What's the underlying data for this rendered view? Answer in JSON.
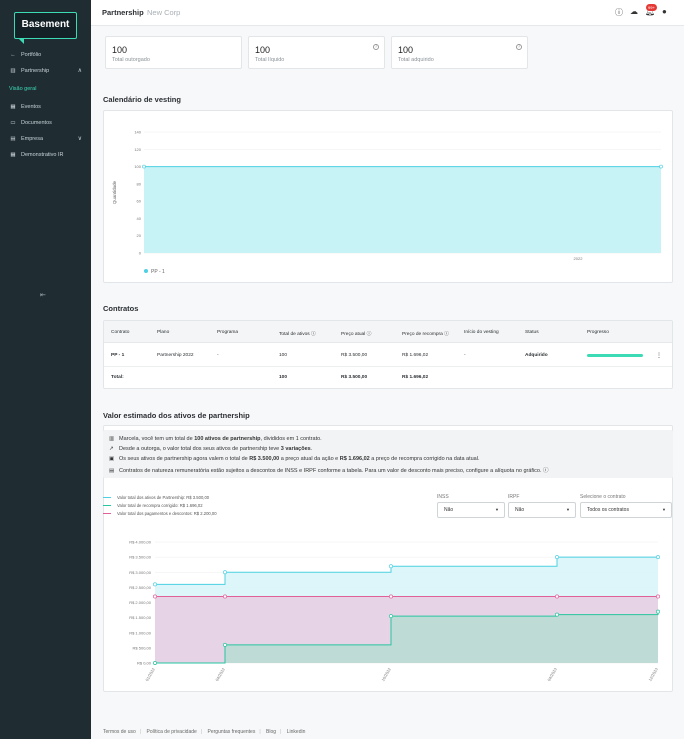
{
  "sidebar": {
    "logo": "Basement",
    "items": [
      {
        "label": "Portfólio",
        "icon": "arrow-left-icon"
      },
      {
        "label": "Partnership",
        "icon": "bar-chart-icon"
      },
      {
        "label": "Visão geral"
      },
      {
        "label": "Eventos",
        "icon": "calendar-icon"
      },
      {
        "label": "Documentos",
        "icon": "folder-icon"
      },
      {
        "label": "Empresa",
        "icon": "building-icon"
      },
      {
        "label": "Demonstrativo IR",
        "icon": "table-icon"
      }
    ],
    "collapse_icon": "collapse-left-icon"
  },
  "header": {
    "title": "Partnership",
    "company": "New Corp",
    "badge": "99+"
  },
  "summary": [
    {
      "value": "100",
      "label": "Total outorgado"
    },
    {
      "value": "100",
      "label": "Total líquido"
    },
    {
      "value": "100",
      "label": "Total adquirido"
    }
  ],
  "vesting": {
    "title": "Calendário de vesting",
    "legend": "PP - 1"
  },
  "contracts": {
    "title": "Contratos",
    "columns": [
      "Contrato",
      "Plano",
      "Programa",
      "Total de ativos",
      "Preço atual",
      "Preço de recompra",
      "Início do vesting",
      "Status",
      "Progresso"
    ],
    "row": {
      "contrato": "PP - 1",
      "plano": "Partnership 2022",
      "programa": "-",
      "total": "100",
      "preco": "R$ 3.500,00",
      "recompra": "R$ 1.696,02",
      "inicio": "-",
      "status": "Adquirido",
      "progress": 1.0
    },
    "total": {
      "label": "Total:",
      "total": "100",
      "preco": "R$ 3.500,00",
      "recompra": "R$ 1.696,02"
    }
  },
  "estimate": {
    "title": "Valor estimado dos ativos de partnership",
    "lines": [
      {
        "a": "Marcela, você tem um total de ",
        "b": "100 ativos de partnership",
        "c": ", divididos em 1 contrato."
      },
      {
        "a": "Desde a outorga, o valor total dos seus ativos de partnership teve ",
        "b": "3 variações",
        "c": "."
      },
      {
        "a": "Os seus ativos de partnership agora valem o total de ",
        "b": "R$ 3.500,00",
        "c": " a preço atual da ação e ",
        "d": "R$ 1.696,02",
        "e": " a preço de recompra corrigido na data atual."
      },
      {
        "a": "Contratos de natureza remuneratória estão sujeitos a descontos de INSS e IRPF conforme a tabela. Para um valor de desconto mais preciso, configure a alíquota no gráfico."
      }
    ],
    "legend": [
      {
        "label": "Valor total dos ativos de Partnership: R$ 3.500,00",
        "color": "#4dd0e1"
      },
      {
        "label": "Valor total de recompra corrigido: R$ 1.696,02",
        "color": "#26c6a0"
      },
      {
        "label": "Valor total dos pagamentos e descontos: R$ 2.200,00",
        "color": "#e0609a"
      }
    ],
    "filters": {
      "inss_label": "INSS",
      "inss_value": "Não",
      "irpf_label": "IRPF",
      "irpf_value": "Não",
      "contract_label": "Selecione o contrato",
      "contract_value": "Todos os contratos"
    }
  },
  "footer": [
    "Termos de uso",
    "Política de privacidade",
    "Perguntas frequentes",
    "Blog",
    "Linkedin"
  ],
  "chart_data": [
    {
      "type": "area",
      "y_ticks": [
        0,
        20,
        40,
        60,
        80,
        100,
        120,
        140
      ],
      "ylim": [
        0,
        140
      ],
      "ylabel": "Quantidade",
      "x_ticks": [
        "2022"
      ],
      "series": [
        {
          "name": "PP - 1",
          "values": [
            100,
            100
          ]
        }
      ]
    },
    {
      "type": "line",
      "y_ticks": [
        "R$ 0,00",
        "R$ 500,00",
        "R$ 1.000,00",
        "R$ 1.500,00",
        "R$ 2.000,00",
        "R$ 2.500,00",
        "R$ 3.000,00",
        "R$ 3.500,00",
        "R$ 4.000,00"
      ],
      "ylim": [
        0,
        4000
      ],
      "x_ticks": [
        "01/2022",
        "04/2022",
        "10/2022",
        "04/2023",
        "12/2023"
      ],
      "series": [
        {
          "name": "Valor total dos ativos de Partnership: R$ 3.500,00",
          "values": [
            2600,
            3000,
            3200,
            3500,
            3500
          ]
        },
        {
          "name": "Valor total de recompra corrigido: R$ 1.696,02",
          "values": [
            0,
            600,
            1550,
            1600,
            1700
          ]
        },
        {
          "name": "Valor total dos pagamentos e descontos: R$ 2.200,00",
          "values": [
            2200,
            2200,
            2200,
            2200,
            2200
          ]
        }
      ]
    }
  ]
}
